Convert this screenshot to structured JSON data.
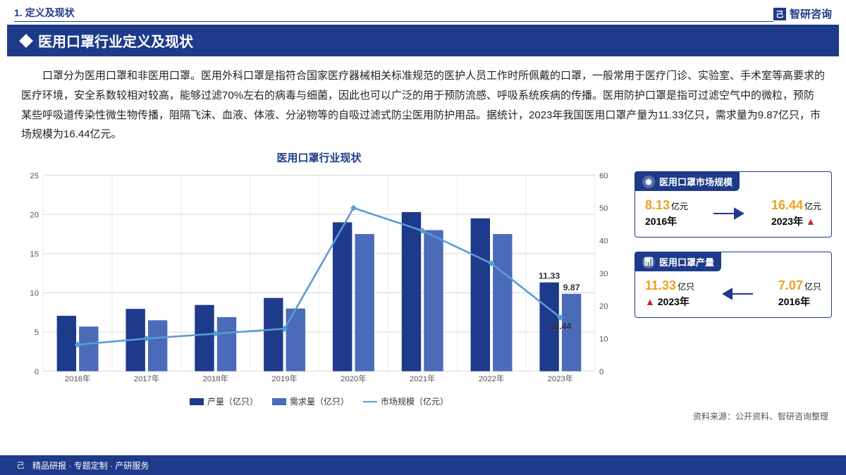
{
  "breadcrumb": "1. 定义及现状",
  "brand": "智研咨询",
  "title": "医用口罩行业定义及现状",
  "body_text": "口罩分为医用口罩和非医用口罩。医用外科口罩是指符合国家医疗器械相关标准规范的医护人员工作时所佩戴的口罩，一般常用于医疗门诊、实验室、手术室等高要求的医疗环境，安全系数较相对较高，能够过滤70%左右的病毒与细菌，因此也可以广泛的用于预防流感、呼吸系统疾病的传播。医用防护口罩是指可过滤空气中的微粒，预防某些呼吸道传染性微生物传播，阻隔飞沫、血液、体液、分泌物等的自吸过滤式防尘医用防护用品。据统计，2023年我国医用口罩产量为11.33亿只，需求量为9.87亿只，市场规模为16.44亿元。",
  "chart": {
    "title": "医用口罩行业现状",
    "categories": [
      "2016年",
      "2017年",
      "2018年",
      "2019年",
      "2020年",
      "2021年",
      "2022年",
      "2023年"
    ],
    "production": [
      7.07,
      7.95,
      8.45,
      9.35,
      19.0,
      20.3,
      19.5,
      11.33
    ],
    "demand": [
      5.7,
      6.5,
      6.9,
      8.0,
      17.5,
      18.0,
      17.5,
      9.87
    ],
    "market": [
      8.13,
      10.0,
      11.5,
      13.0,
      50.0,
      43.0,
      33.0,
      16.44
    ],
    "left_ylim": [
      0,
      25
    ],
    "left_step": 5,
    "right_ylim": [
      0,
      60
    ],
    "right_step": 10,
    "bar1_color": "#1e3a8a",
    "bar2_color": "#4a6bb8",
    "line_color": "#5b9bd5",
    "grid_color": "#d9d9d9",
    "labels_shown": {
      "2023": {
        "prod": "11.33",
        "demand": "9.87",
        "market": "16.44"
      }
    },
    "legend": {
      "prod": "产量（亿只）",
      "demand": "需求量（亿只）",
      "market": "市场规模（亿元）"
    }
  },
  "card1": {
    "title": "医用口罩市场规模",
    "left_val": "8.13",
    "left_unit": "亿元",
    "left_year": "2016年",
    "left_color": "#f0a020",
    "right_val": "16.44",
    "right_unit": "亿元",
    "right_year": "2023年",
    "right_color": "#f0a020",
    "arrow_dir": "right",
    "trend": "up"
  },
  "card2": {
    "title": "医用口罩产量",
    "left_val": "11.33",
    "left_unit": "亿只",
    "left_year": "2023年",
    "left_color": "#f0a020",
    "right_val": "7.07",
    "right_unit": "亿只",
    "right_year": "2016年",
    "right_color": "#f0a020",
    "arrow_dir": "left",
    "trend": "up"
  },
  "source": "资料来源：公开资料、智研咨询整理",
  "footer": "精品研报 · 专题定制 · 产研服务"
}
